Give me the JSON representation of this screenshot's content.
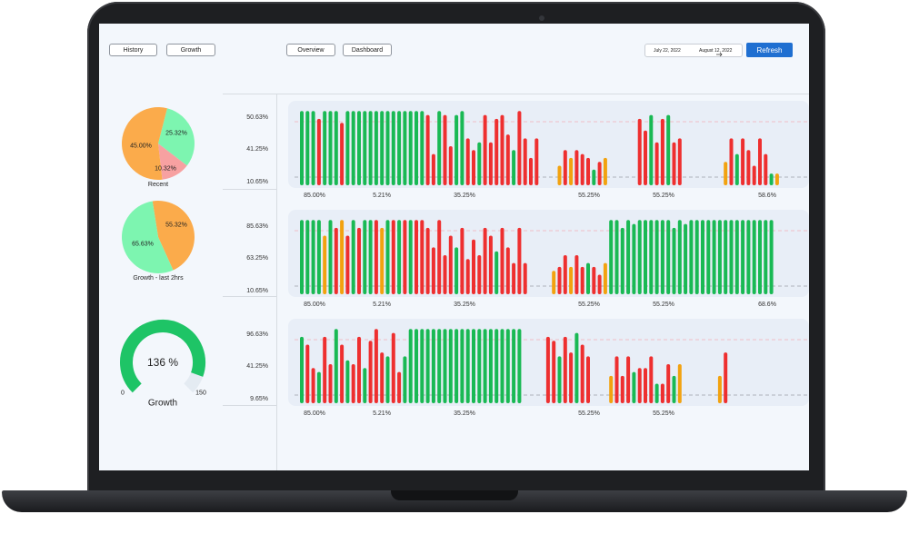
{
  "header": {
    "nav_left": [
      "History",
      "Growth"
    ],
    "nav_center": [
      "Overview",
      "Dashboard"
    ],
    "date_start": "July 22, 2022",
    "date_end": "August 12, 2022",
    "refresh_label": "Refresh"
  },
  "pies": [
    {
      "caption": "Recent",
      "slices": [
        {
          "value": 25.32,
          "label": "25.32%",
          "color": "#7df5b0"
        },
        {
          "value": 10.32,
          "label": "10.32%",
          "color": "#f7a1a1"
        },
        {
          "value": 45.0,
          "label": "45.00%",
          "color": "#fbab4b"
        }
      ]
    },
    {
      "caption": "Growth - last 2hrs",
      "slices": [
        {
          "value": 55.32,
          "label": "55.32%",
          "color": "#fbab4b"
        },
        {
          "value": 65.63,
          "label": "65.63%",
          "color": "#7df5b0"
        }
      ]
    }
  ],
  "gauge": {
    "value_label": "136 %",
    "min_label": "0",
    "max_label": "150",
    "caption": "Growth",
    "value": 136,
    "max": 150,
    "color": "#1ec466"
  },
  "colors": {
    "green": "#19b954",
    "red": "#ee2f2f",
    "orange": "#f2a20f",
    "dashed_red": "#f2aeb8",
    "dashed_gray": "#9aa0a8"
  },
  "chart_data": [
    {
      "type": "bar",
      "y_ticks": [
        "50.63%",
        "41.25%",
        "10.65%"
      ],
      "x_labels": [
        "85.00%",
        "5.21%",
        "35.25%",
        "55.25%",
        "55.25%",
        "58.6%"
      ],
      "bars": [
        {
          "v": 0.95,
          "c": "g"
        },
        {
          "v": 0.95,
          "c": "g"
        },
        {
          "v": 0.95,
          "c": "g"
        },
        {
          "v": 0.85,
          "c": "r"
        },
        {
          "v": 0.95,
          "c": "g"
        },
        {
          "v": 0.95,
          "c": "g"
        },
        {
          "v": 0.95,
          "c": "g"
        },
        {
          "v": 0.8,
          "c": "r"
        },
        {
          "v": 0.95,
          "c": "g"
        },
        {
          "v": 0.95,
          "c": "g"
        },
        {
          "v": 0.95,
          "c": "g"
        },
        {
          "v": 0.95,
          "c": "g"
        },
        {
          "v": 0.95,
          "c": "g"
        },
        {
          "v": 0.95,
          "c": "g"
        },
        {
          "v": 0.95,
          "c": "g"
        },
        {
          "v": 0.95,
          "c": "g"
        },
        {
          "v": 0.95,
          "c": "g"
        },
        {
          "v": 0.95,
          "c": "g"
        },
        {
          "v": 0.95,
          "c": "g"
        },
        {
          "v": 0.95,
          "c": "g"
        },
        {
          "v": 0.95,
          "c": "g"
        },
        {
          "v": 0.95,
          "c": "g"
        },
        {
          "v": 0.9,
          "c": "r"
        },
        {
          "v": 0.4,
          "c": "r"
        },
        {
          "v": 0.95,
          "c": "g"
        },
        {
          "v": 0.9,
          "c": "r"
        },
        {
          "v": 0.5,
          "c": "r"
        },
        {
          "v": 0.9,
          "c": "g"
        },
        {
          "v": 0.95,
          "c": "g"
        },
        {
          "v": 0.6,
          "c": "r"
        },
        {
          "v": 0.45,
          "c": "r"
        },
        {
          "v": 0.55,
          "c": "g"
        },
        {
          "v": 0.9,
          "c": "r"
        },
        {
          "v": 0.55,
          "c": "r"
        },
        {
          "v": 0.85,
          "c": "r"
        },
        {
          "v": 0.9,
          "c": "r"
        },
        {
          "v": 0.65,
          "c": "r"
        },
        {
          "v": 0.45,
          "c": "g"
        },
        {
          "v": 0.95,
          "c": "r"
        },
        {
          "v": 0.6,
          "c": "r"
        },
        {
          "v": 0.35,
          "c": "r"
        },
        {
          "v": 0.6,
          "c": "r"
        },
        {
          "v": 0,
          "c": "g"
        },
        {
          "v": 0,
          "c": "g"
        },
        {
          "v": 0,
          "c": "g"
        },
        {
          "v": 0.25,
          "c": "o"
        },
        {
          "v": 0.45,
          "c": "r"
        },
        {
          "v": 0.35,
          "c": "o"
        },
        {
          "v": 0.45,
          "c": "r"
        },
        {
          "v": 0.4,
          "c": "r"
        },
        {
          "v": 0.35,
          "c": "r"
        },
        {
          "v": 0.2,
          "c": "g"
        },
        {
          "v": 0.3,
          "c": "r"
        },
        {
          "v": 0.35,
          "c": "o"
        },
        {
          "v": 0,
          "c": "g"
        },
        {
          "v": 0,
          "c": "g"
        },
        {
          "v": 0,
          "c": "g"
        },
        {
          "v": 0,
          "c": "g"
        },
        {
          "v": 0,
          "c": "g"
        },
        {
          "v": 0.85,
          "c": "r"
        },
        {
          "v": 0.7,
          "c": "r"
        },
        {
          "v": 0.9,
          "c": "g"
        },
        {
          "v": 0.55,
          "c": "r"
        },
        {
          "v": 0.85,
          "c": "r"
        },
        {
          "v": 0.9,
          "c": "g"
        },
        {
          "v": 0.55,
          "c": "r"
        },
        {
          "v": 0.6,
          "c": "r"
        },
        {
          "v": 0,
          "c": "g"
        },
        {
          "v": 0,
          "c": "g"
        },
        {
          "v": 0,
          "c": "g"
        },
        {
          "v": 0,
          "c": "g"
        },
        {
          "v": 0,
          "c": "g"
        },
        {
          "v": 0,
          "c": "g"
        },
        {
          "v": 0,
          "c": "g"
        },
        {
          "v": 0.3,
          "c": "o"
        },
        {
          "v": 0.6,
          "c": "r"
        },
        {
          "v": 0.4,
          "c": "g"
        },
        {
          "v": 0.6,
          "c": "r"
        },
        {
          "v": 0.45,
          "c": "r"
        },
        {
          "v": 0.25,
          "c": "r"
        },
        {
          "v": 0.6,
          "c": "r"
        },
        {
          "v": 0.4,
          "c": "r"
        },
        {
          "v": 0.15,
          "c": "g"
        },
        {
          "v": 0.15,
          "c": "o"
        }
      ]
    },
    {
      "type": "bar",
      "y_ticks": [
        "85.63%",
        "63.25%",
        "10.65%"
      ],
      "x_labels": [
        "85.00%",
        "5.21%",
        "35.25%",
        "55.25%",
        "55.25%",
        "68.6%"
      ],
      "bars": [
        {
          "v": 0.95,
          "c": "g"
        },
        {
          "v": 0.95,
          "c": "g"
        },
        {
          "v": 0.95,
          "c": "g"
        },
        {
          "v": 0.95,
          "c": "g"
        },
        {
          "v": 0.75,
          "c": "o"
        },
        {
          "v": 0.95,
          "c": "g"
        },
        {
          "v": 0.85,
          "c": "r"
        },
        {
          "v": 0.95,
          "c": "o"
        },
        {
          "v": 0.75,
          "c": "r"
        },
        {
          "v": 0.95,
          "c": "g"
        },
        {
          "v": 0.85,
          "c": "r"
        },
        {
          "v": 0.95,
          "c": "g"
        },
        {
          "v": 0.95,
          "c": "g"
        },
        {
          "v": 0.95,
          "c": "r"
        },
        {
          "v": 0.85,
          "c": "o"
        },
        {
          "v": 0.95,
          "c": "g"
        },
        {
          "v": 0.95,
          "c": "r"
        },
        {
          "v": 0.95,
          "c": "g"
        },
        {
          "v": 0.95,
          "c": "r"
        },
        {
          "v": 0.95,
          "c": "g"
        },
        {
          "v": 0.95,
          "c": "r"
        },
        {
          "v": 0.95,
          "c": "r"
        },
        {
          "v": 0.85,
          "c": "r"
        },
        {
          "v": 0.6,
          "c": "r"
        },
        {
          "v": 0.95,
          "c": "r"
        },
        {
          "v": 0.5,
          "c": "r"
        },
        {
          "v": 0.75,
          "c": "r"
        },
        {
          "v": 0.6,
          "c": "g"
        },
        {
          "v": 0.85,
          "c": "r"
        },
        {
          "v": 0.45,
          "c": "r"
        },
        {
          "v": 0.7,
          "c": "r"
        },
        {
          "v": 0.5,
          "c": "r"
        },
        {
          "v": 0.85,
          "c": "r"
        },
        {
          "v": 0.75,
          "c": "r"
        },
        {
          "v": 0.55,
          "c": "g"
        },
        {
          "v": 0.85,
          "c": "r"
        },
        {
          "v": 0.6,
          "c": "r"
        },
        {
          "v": 0.4,
          "c": "r"
        },
        {
          "v": 0.85,
          "c": "r"
        },
        {
          "v": 0.4,
          "c": "r"
        },
        {
          "v": 0,
          "c": "g"
        },
        {
          "v": 0,
          "c": "g"
        },
        {
          "v": 0,
          "c": "g"
        },
        {
          "v": 0,
          "c": "g"
        },
        {
          "v": 0.3,
          "c": "o"
        },
        {
          "v": 0.35,
          "c": "r"
        },
        {
          "v": 0.5,
          "c": "r"
        },
        {
          "v": 0.35,
          "c": "o"
        },
        {
          "v": 0.5,
          "c": "r"
        },
        {
          "v": 0.35,
          "c": "r"
        },
        {
          "v": 0.4,
          "c": "g"
        },
        {
          "v": 0.35,
          "c": "r"
        },
        {
          "v": 0.25,
          "c": "r"
        },
        {
          "v": 0.4,
          "c": "o"
        },
        {
          "v": 0.95,
          "c": "g"
        },
        {
          "v": 0.95,
          "c": "g"
        },
        {
          "v": 0.85,
          "c": "g"
        },
        {
          "v": 0.95,
          "c": "g"
        },
        {
          "v": 0.9,
          "c": "g"
        },
        {
          "v": 0.95,
          "c": "g"
        },
        {
          "v": 0.95,
          "c": "g"
        },
        {
          "v": 0.95,
          "c": "g"
        },
        {
          "v": 0.95,
          "c": "g"
        },
        {
          "v": 0.95,
          "c": "g"
        },
        {
          "v": 0.95,
          "c": "g"
        },
        {
          "v": 0.85,
          "c": "g"
        },
        {
          "v": 0.95,
          "c": "g"
        },
        {
          "v": 0.9,
          "c": "g"
        },
        {
          "v": 0.95,
          "c": "g"
        },
        {
          "v": 0.95,
          "c": "g"
        },
        {
          "v": 0.95,
          "c": "g"
        },
        {
          "v": 0.95,
          "c": "g"
        },
        {
          "v": 0.95,
          "c": "g"
        },
        {
          "v": 0.95,
          "c": "g"
        },
        {
          "v": 0.95,
          "c": "g"
        },
        {
          "v": 0.95,
          "c": "g"
        },
        {
          "v": 0.95,
          "c": "g"
        },
        {
          "v": 0.95,
          "c": "g"
        },
        {
          "v": 0.95,
          "c": "g"
        },
        {
          "v": 0.95,
          "c": "g"
        },
        {
          "v": 0.95,
          "c": "g"
        },
        {
          "v": 0.95,
          "c": "g"
        },
        {
          "v": 0.95,
          "c": "g"
        }
      ]
    },
    {
      "type": "bar",
      "y_ticks": [
        "96.63%",
        "41.25%",
        "9.65%"
      ],
      "x_labels": [
        "85.00%",
        "5.21%",
        "35.25%",
        "55.25%",
        "55.25%"
      ],
      "bars": [
        {
          "v": 0.85,
          "c": "g"
        },
        {
          "v": 0.75,
          "c": "r"
        },
        {
          "v": 0.45,
          "c": "r"
        },
        {
          "v": 0.4,
          "c": "g"
        },
        {
          "v": 0.85,
          "c": "r"
        },
        {
          "v": 0.5,
          "c": "r"
        },
        {
          "v": 0.95,
          "c": "g"
        },
        {
          "v": 0.75,
          "c": "r"
        },
        {
          "v": 0.55,
          "c": "g"
        },
        {
          "v": 0.5,
          "c": "r"
        },
        {
          "v": 0.85,
          "c": "r"
        },
        {
          "v": 0.45,
          "c": "g"
        },
        {
          "v": 0.8,
          "c": "r"
        },
        {
          "v": 0.95,
          "c": "r"
        },
        {
          "v": 0.65,
          "c": "r"
        },
        {
          "v": 0.6,
          "c": "g"
        },
        {
          "v": 0.9,
          "c": "r"
        },
        {
          "v": 0.4,
          "c": "r"
        },
        {
          "v": 0.6,
          "c": "g"
        },
        {
          "v": 0.95,
          "c": "g"
        },
        {
          "v": 0.95,
          "c": "g"
        },
        {
          "v": 0.95,
          "c": "g"
        },
        {
          "v": 0.95,
          "c": "g"
        },
        {
          "v": 0.95,
          "c": "g"
        },
        {
          "v": 0.95,
          "c": "g"
        },
        {
          "v": 0.95,
          "c": "g"
        },
        {
          "v": 0.95,
          "c": "g"
        },
        {
          "v": 0.95,
          "c": "g"
        },
        {
          "v": 0.95,
          "c": "g"
        },
        {
          "v": 0.95,
          "c": "g"
        },
        {
          "v": 0.95,
          "c": "g"
        },
        {
          "v": 0.95,
          "c": "g"
        },
        {
          "v": 0.95,
          "c": "g"
        },
        {
          "v": 0.95,
          "c": "g"
        },
        {
          "v": 0.95,
          "c": "g"
        },
        {
          "v": 0.95,
          "c": "g"
        },
        {
          "v": 0.95,
          "c": "g"
        },
        {
          "v": 0.95,
          "c": "g"
        },
        {
          "v": 0.95,
          "c": "g"
        },
        {
          "v": 0,
          "c": "g"
        },
        {
          "v": 0,
          "c": "g"
        },
        {
          "v": 0,
          "c": "g"
        },
        {
          "v": 0,
          "c": "g"
        },
        {
          "v": 0.85,
          "c": "r"
        },
        {
          "v": 0.8,
          "c": "r"
        },
        {
          "v": 0.6,
          "c": "g"
        },
        {
          "v": 0.85,
          "c": "r"
        },
        {
          "v": 0.65,
          "c": "r"
        },
        {
          "v": 0.9,
          "c": "g"
        },
        {
          "v": 0.75,
          "c": "r"
        },
        {
          "v": 0.6,
          "c": "r"
        },
        {
          "v": 0,
          "c": "g"
        },
        {
          "v": 0,
          "c": "g"
        },
        {
          "v": 0,
          "c": "g"
        },
        {
          "v": 0.35,
          "c": "o"
        },
        {
          "v": 0.6,
          "c": "r"
        },
        {
          "v": 0.35,
          "c": "r"
        },
        {
          "v": 0.6,
          "c": "r"
        },
        {
          "v": 0.4,
          "c": "g"
        },
        {
          "v": 0.45,
          "c": "r"
        },
        {
          "v": 0.45,
          "c": "r"
        },
        {
          "v": 0.6,
          "c": "r"
        },
        {
          "v": 0.25,
          "c": "g"
        },
        {
          "v": 0.25,
          "c": "r"
        },
        {
          "v": 0.5,
          "c": "r"
        },
        {
          "v": 0.35,
          "c": "g"
        },
        {
          "v": 0.5,
          "c": "o"
        },
        {
          "v": 0,
          "c": "g"
        },
        {
          "v": 0,
          "c": "g"
        },
        {
          "v": 0,
          "c": "g"
        },
        {
          "v": 0,
          "c": "g"
        },
        {
          "v": 0,
          "c": "g"
        },
        {
          "v": 0,
          "c": "g"
        },
        {
          "v": 0.35,
          "c": "o"
        },
        {
          "v": 0.65,
          "c": "r"
        }
      ]
    }
  ]
}
